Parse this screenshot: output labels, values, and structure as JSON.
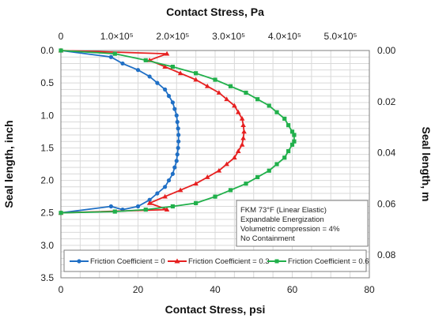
{
  "chart_data": {
    "type": "line",
    "xlabel_bottom": "Contact Stress, psi",
    "xlabel_top": "Contact Stress, Pa",
    "ylabel_left": "Seal length, inch",
    "ylabel_right": "Seal length, m",
    "x_bottom_range": [
      0,
      80
    ],
    "x_bottom_ticks": [
      "0",
      "20",
      "40",
      "60",
      "80"
    ],
    "x_top_ticks": [
      "0",
      "1.0×10⁵",
      "2.0×10⁵",
      "3.0×10⁵",
      "4.0×10⁵",
      "5.0×10⁵"
    ],
    "y_left_range": [
      0,
      3.5
    ],
    "y_left_ticks": [
      "0.0",
      "0.5",
      "1.0",
      "1.5",
      "2.0",
      "2.5",
      "3.0",
      "3.5"
    ],
    "y_right_ticks": [
      "0.00",
      "0.02",
      "0.04",
      "0.06",
      "0.08"
    ],
    "y_inverted": true,
    "grid": true,
    "annotation_lines": [
      "FKM 73°F (Linear Elastic)",
      "Expandable Energization",
      "Volumetric compression = 4%",
      "No Containment"
    ],
    "legend_position": "bottom",
    "series": [
      {
        "name": "Friction Coefficient = 0",
        "color": "#1f6fc5",
        "marker": "circle",
        "x": [
          0,
          13,
          16,
          20,
          23,
          25,
          27,
          28,
          29,
          29.5,
          30,
          30.2,
          30.4,
          30.5,
          30.5,
          30.4,
          30.2,
          30,
          29.5,
          29,
          28,
          27,
          25,
          23,
          20,
          16,
          13,
          0
        ],
        "y": [
          0,
          0.1,
          0.2,
          0.3,
          0.4,
          0.5,
          0.6,
          0.7,
          0.8,
          0.9,
          1.0,
          1.1,
          1.2,
          1.3,
          1.4,
          1.5,
          1.6,
          1.7,
          1.8,
          1.9,
          2.0,
          2.1,
          2.2,
          2.3,
          2.4,
          2.45,
          2.4,
          2.5
        ]
      },
      {
        "name": "Friction Coefficient = 0.3",
        "color": "#e62020",
        "marker": "triangle",
        "x": [
          0,
          27.5,
          23,
          27,
          31,
          35,
          38,
          41,
          43,
          45,
          46,
          47,
          47.3,
          47.5,
          47.3,
          47,
          46,
          45,
          43,
          41,
          38,
          35,
          31,
          27,
          23,
          27.5,
          0
        ],
        "y": [
          0,
          0.05,
          0.15,
          0.25,
          0.35,
          0.45,
          0.55,
          0.65,
          0.75,
          0.85,
          0.95,
          1.05,
          1.15,
          1.25,
          1.35,
          1.45,
          1.55,
          1.65,
          1.75,
          1.85,
          1.95,
          2.05,
          2.15,
          2.25,
          2.35,
          2.45,
          2.5
        ]
      },
      {
        "name": "Friction Coefficient = 0.6",
        "color": "#21b04b",
        "marker": "square",
        "x": [
          0,
          14,
          22,
          29,
          35,
          40,
          44,
          48,
          51,
          54,
          56,
          58,
          59,
          60,
          60.5,
          60.5,
          60,
          59,
          58,
          56,
          54,
          51,
          48,
          44,
          40,
          35,
          29,
          22,
          14,
          0
        ],
        "y": [
          0,
          0.05,
          0.15,
          0.25,
          0.35,
          0.45,
          0.55,
          0.65,
          0.75,
          0.85,
          0.95,
          1.05,
          1.15,
          1.25,
          1.3,
          1.4,
          1.45,
          1.55,
          1.65,
          1.75,
          1.85,
          1.95,
          2.05,
          2.15,
          2.25,
          2.35,
          2.4,
          2.45,
          2.48,
          2.5
        ]
      }
    ]
  }
}
